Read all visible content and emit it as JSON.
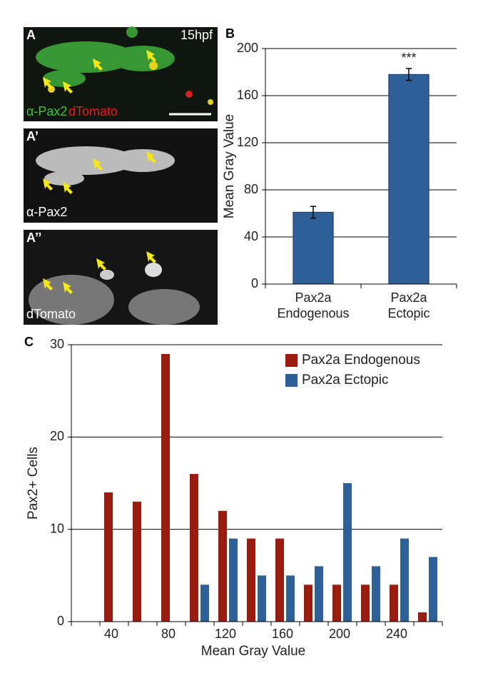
{
  "panels": {
    "A": {
      "label": "A",
      "stage": "15hpf",
      "stain1": "α-Pax2",
      "stain2": "dTomato"
    },
    "A1": {
      "label": "A’",
      "stain": "α-Pax2"
    },
    "A2": {
      "label": "A’’",
      "stain": "dTomato"
    },
    "B": {
      "label": "B"
    },
    "C": {
      "label": "C"
    }
  },
  "chart_data": [
    {
      "type": "bar",
      "ylabel": "Mean Gray Value",
      "categories": [
        "Pax2a Endogenous",
        "Pax2a Ectopic"
      ],
      "values": [
        61,
        178
      ],
      "errors": [
        5,
        5
      ],
      "color": "#2e5f96",
      "annotation": "***",
      "ylim": [
        0,
        200
      ],
      "yticks": [
        0,
        40,
        80,
        120,
        160,
        200
      ],
      "grid": true
    },
    {
      "type": "grouped-bar",
      "xlabel": "Mean Gray Value",
      "ylabel": "Pax2+ Cells",
      "categories": [
        null,
        "40",
        null,
        "80",
        null,
        "120",
        null,
        "160",
        null,
        "200",
        null,
        "240",
        null
      ],
      "series": [
        {
          "name": "Pax2a Endogenous",
          "color": "#9a1c10",
          "values": [
            0,
            14,
            13,
            29,
            16,
            12,
            9,
            9,
            4,
            4,
            4,
            4,
            1
          ]
        },
        {
          "name": "Pax2a Ectopic",
          "color": "#2e5f96",
          "values": [
            0,
            0,
            0,
            0,
            4,
            9,
            5,
            5,
            6,
            15,
            6,
            9,
            7
          ]
        }
      ],
      "ylim": [
        0,
        30
      ],
      "yticks": [
        0,
        10,
        20,
        30
      ],
      "grid": true,
      "legend": "top-right"
    }
  ]
}
